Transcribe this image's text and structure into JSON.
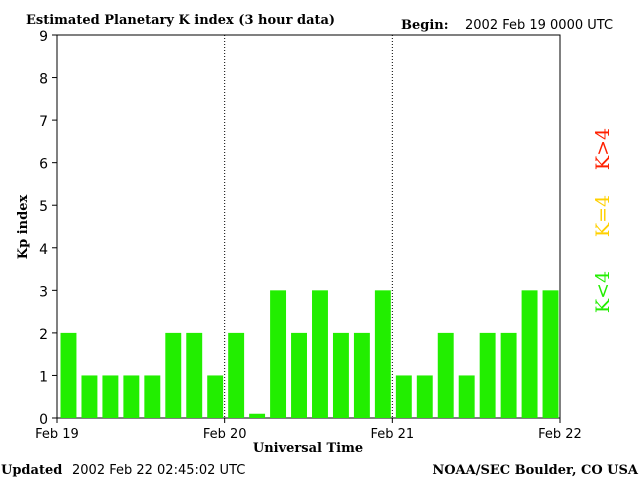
{
  "header": {
    "title": "Estimated Planetary K index (3 hour data)",
    "begin_label": "Begin:",
    "begin_value": "2002 Feb 19 0000 UTC"
  },
  "footer": {
    "updated_label": "Updated",
    "updated_value": "2002 Feb 22 02:45:02 UTC",
    "source": "NOAA/SEC Boulder, CO USA"
  },
  "legend": {
    "items": [
      {
        "label": "K>4",
        "color": "#ff2000"
      },
      {
        "label": "K=4",
        "color": "#ffd000"
      },
      {
        "label": "K<4",
        "color": "#22ee00"
      }
    ]
  },
  "chart_data": {
    "type": "bar",
    "title": "Estimated Planetary K index (3 hour data)",
    "xlabel": "Universal Time",
    "ylabel": "Kp index",
    "ylim": [
      0,
      9
    ],
    "yticks": [
      0,
      1,
      2,
      3,
      4,
      5,
      6,
      7,
      8,
      9
    ],
    "day_labels": [
      "Feb 19",
      "Feb 20",
      "Feb 21",
      "Feb 22"
    ],
    "bars_per_day": 8,
    "grid": false,
    "day_separators": "dotted",
    "values": [
      2,
      1,
      1,
      1,
      1,
      2,
      2,
      1,
      2,
      0.1,
      3,
      2,
      3,
      2,
      2,
      3,
      1,
      1,
      2,
      1,
      2,
      2,
      3,
      3
    ],
    "bar_color": "#22ee00"
  }
}
